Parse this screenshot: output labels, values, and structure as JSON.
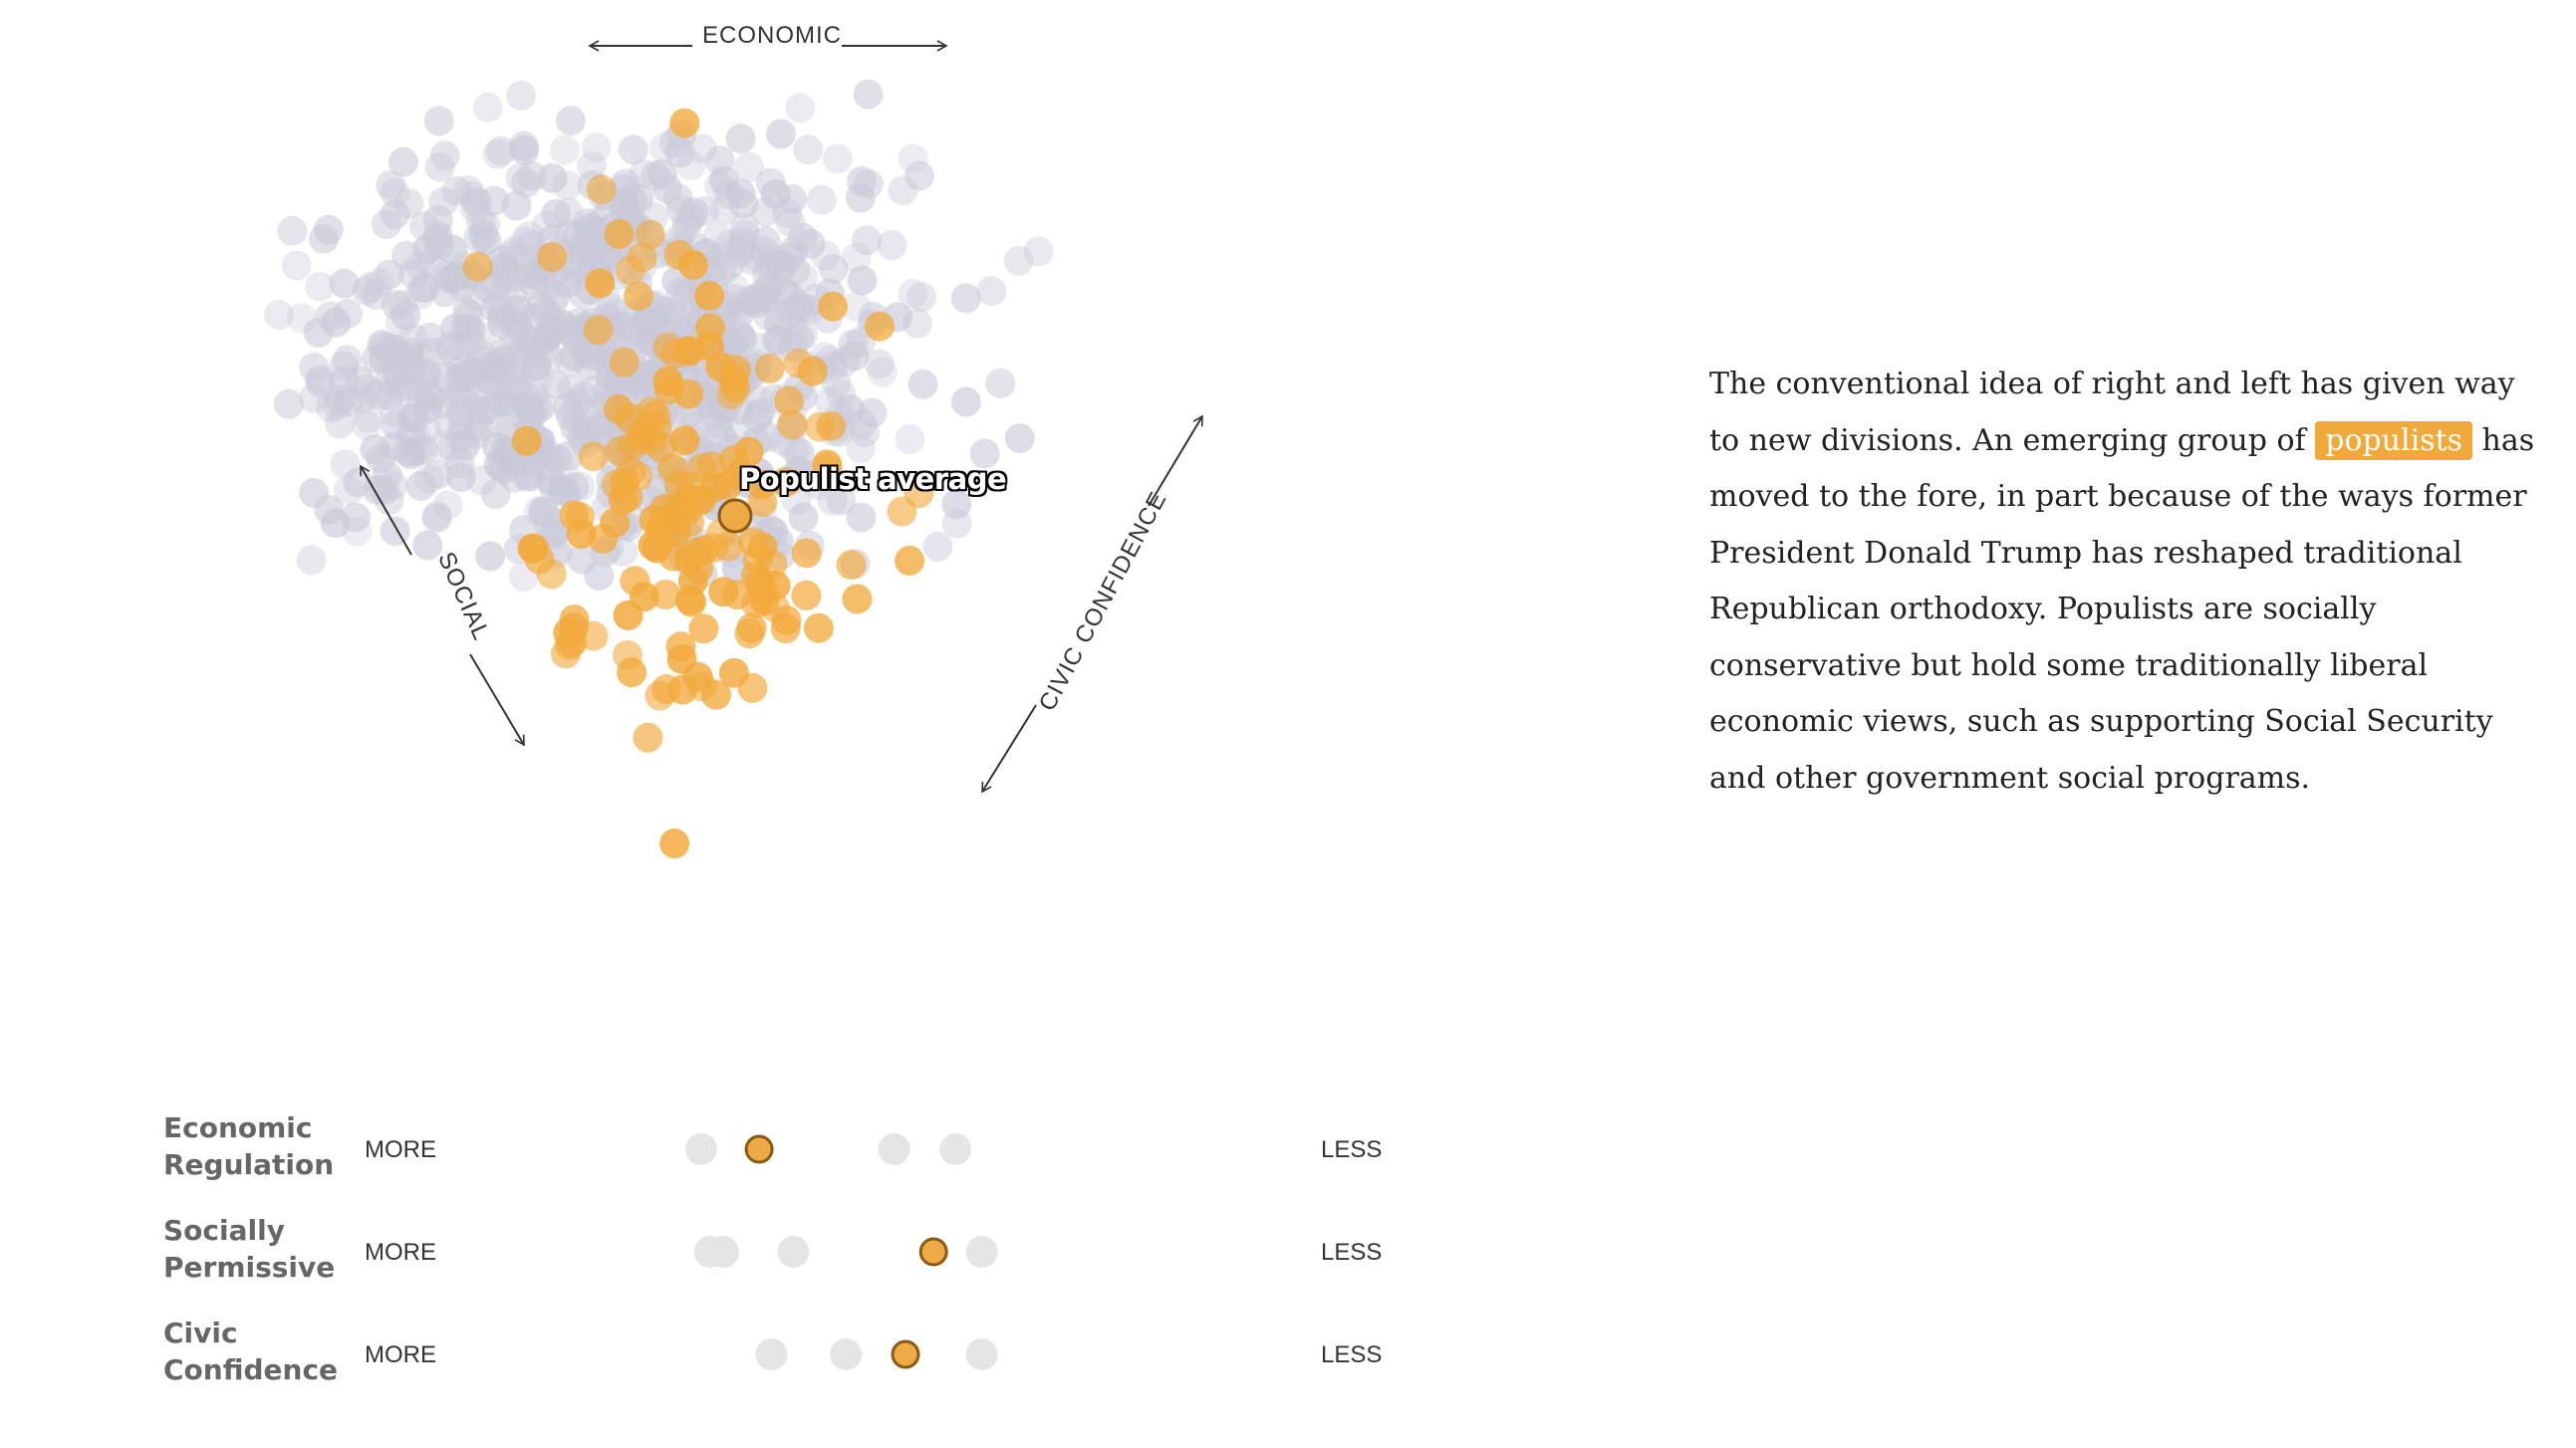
{
  "colors": {
    "populist": "#f2a93b",
    "populist_avg_fill": "#eeaa44",
    "populist_avg_stroke": "#8a5a14",
    "other": "#c9c9d9",
    "track_dot": "#e5e5e5",
    "text": "#222222"
  },
  "axes": {
    "economic": "ECONOMIC",
    "social": "SOCIAL",
    "civic": "CIVIC CONFIDENCE"
  },
  "chart_data": [
    {
      "type": "scatter",
      "title": "",
      "description_axes": [
        "ECONOMIC",
        "SOCIAL",
        "CIVIC CONFIDENCE"
      ],
      "series": [
        {
          "name": "populists",
          "color": "#f2a93b",
          "n_points": 160
        },
        {
          "name": "",
          "color": "#c9c9d9",
          "n_points": 900
        }
      ],
      "annotation": "Populist average",
      "average_point": {
        "x": 0.49,
        "y": 0.47
      }
    },
    {
      "type": "scatter",
      "rows": [
        {
          "label_line1": "Economic",
          "label_line2": "Regulation",
          "more": "MORE",
          "less": "LESS",
          "populist": 0.366,
          "others": [
            0.3,
            0.52,
            0.59
          ]
        },
        {
          "label_line1": "Socially",
          "label_line2": "Permissive",
          "more": "MORE",
          "less": "LESS",
          "populist": 0.565,
          "others": [
            0.31,
            0.325,
            0.405,
            0.62
          ]
        },
        {
          "label_line1": "Civic",
          "label_line2": "Confidence",
          "more": "MORE",
          "less": "LESS",
          "populist": 0.533,
          "others": [
            0.38,
            0.465,
            0.62
          ]
        }
      ]
    }
  ],
  "narrative": {
    "before": "The conventional idea of right and left has given way to new divisions. An emerging group of ",
    "highlight": "populists",
    "after": " has moved to the fore, in part because of the ways former President Donald Trump has reshaped traditional Republican orthodoxy. Populists are socially conservative but hold some traditionally liberal economic views, such as supporting Social Security and other government social programs."
  }
}
